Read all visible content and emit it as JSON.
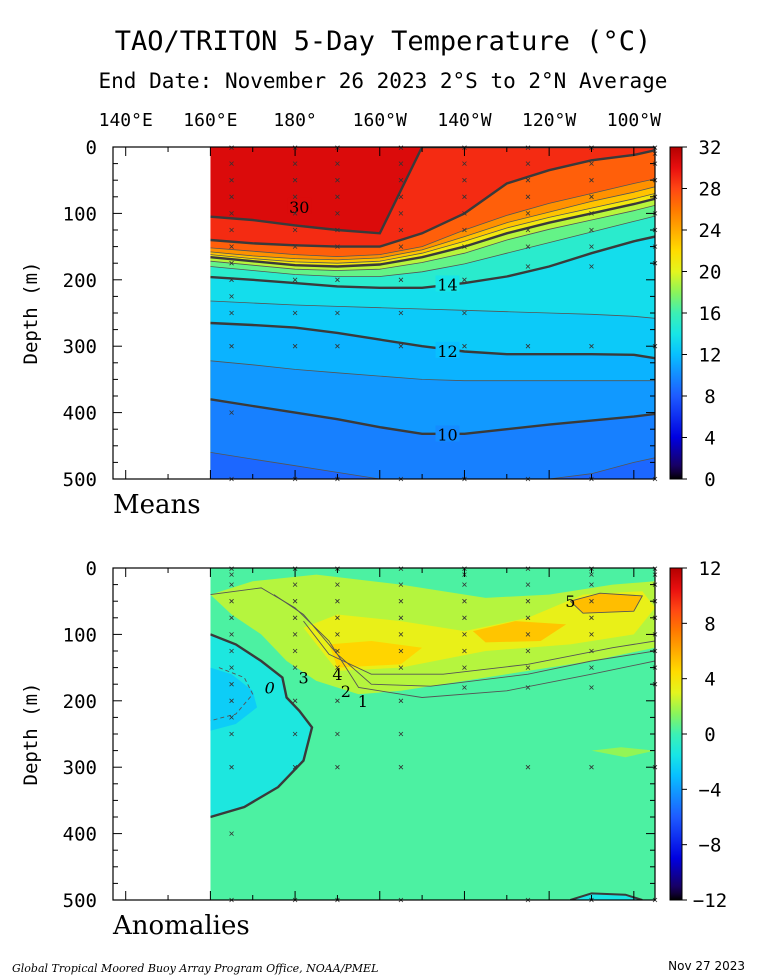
{
  "title": "TAO/TRITON 5-Day Temperature (°C)",
  "subtitle": "End Date: November 26 2023  2°S to 2°N Average",
  "footer_left": "Global Tropical Moored Buoy Array Program Office, NOAA/PMEL",
  "footer_right": "Nov 27 2023",
  "chart_data": [
    {
      "type": "heatmap",
      "panel_label": "Means",
      "x_ticks": [
        "140°E",
        "160°E",
        "180°",
        "160°W",
        "140°W",
        "120°W",
        "100°W"
      ],
      "x_tick_lon": [
        140,
        160,
        180,
        200,
        220,
        240,
        260
      ],
      "xlim": [
        137,
        265
      ],
      "data_xlim": [
        160,
        265
      ],
      "ylabel": "Depth (m)",
      "ylim": [
        0,
        500
      ],
      "y_ticks": [
        0,
        100,
        200,
        300,
        400,
        500
      ],
      "colorbar": {
        "min": 0,
        "max": 32,
        "ticks": [
          0,
          4,
          8,
          12,
          16,
          20,
          24,
          28,
          32
        ]
      },
      "isotherm_depths": {
        "lon": [
          160,
          170,
          180,
          190,
          200,
          210,
          220,
          230,
          240,
          250,
          260,
          265
        ],
        "levels": [
          {
            "value": 30,
            "depth": [
              105,
              110,
              118,
              125,
              130,
              0,
              0,
              0,
              0,
              0,
              0,
              0
            ]
          },
          {
            "value": 28,
            "depth": [
              140,
              145,
              148,
              150,
              150,
              130,
              100,
              55,
              35,
              20,
              12,
              5
            ]
          },
          {
            "value": 26,
            "depth": [
              152,
              157,
              162,
              165,
              162,
              150,
              125,
              103,
              85,
              70,
              55,
              48
            ]
          },
          {
            "value": 24,
            "depth": [
              158,
              164,
              168,
              170,
              167,
              155,
              135,
              114,
              98,
              82,
              68,
              60
            ]
          },
          {
            "value": 22,
            "depth": [
              162,
              168,
              173,
              175,
              172,
              160,
              142,
              122,
              106,
              92,
              78,
              70
            ]
          },
          {
            "value": 20,
            "depth": [
              166,
              172,
              178,
              180,
              177,
              166,
              150,
              130,
              114,
              100,
              86,
              78
            ]
          },
          {
            "value": 18,
            "depth": [
              172,
              178,
              184,
              186,
              184,
              174,
              160,
              140,
              124,
              110,
              96,
              88
            ]
          },
          {
            "value": 16,
            "depth": [
              180,
              186,
              192,
              195,
              195,
              188,
              176,
              160,
              144,
              128,
              112,
              104
            ]
          },
          {
            "value": 14,
            "depth": [
              196,
              200,
              205,
              210,
              212,
              212,
              205,
              195,
              180,
              160,
              142,
              135
            ]
          },
          {
            "value": 13,
            "depth": [
              232,
              235,
              238,
              240,
              242,
              244,
              246,
              248,
              250,
              252,
              255,
              258
            ]
          },
          {
            "value": 12,
            "depth": [
              265,
              268,
              272,
              280,
              290,
              300,
              308,
              312,
              312,
              312,
              313,
              318
            ]
          },
          {
            "value": 11,
            "depth": [
              322,
              328,
              335,
              340,
              345,
              350,
              352,
              352,
              352,
              352,
              352,
              352
            ]
          },
          {
            "value": 10,
            "depth": [
              380,
              390,
              400,
              410,
              422,
              432,
              432,
              425,
              418,
              412,
              406,
              402
            ]
          },
          {
            "value": 9,
            "depth": [
              460,
              470,
              480,
              490,
              500,
              500,
              500,
              500,
              500,
              492,
              475,
              468
            ]
          }
        ]
      },
      "labeled_contours": [
        {
          "text": "30",
          "lon": 181,
          "depth": 90
        },
        {
          "text": "14",
          "lon": 216,
          "depth": 207
        },
        {
          "text": "12",
          "lon": 216,
          "depth": 307
        },
        {
          "text": "10",
          "lon": 216,
          "depth": 433
        }
      ],
      "observation_marks": [
        {
          "lon": 165,
          "depths": [
            1,
            25,
            50,
            75,
            100,
            125,
            150,
            175,
            200,
            225,
            250,
            300,
            400,
            500
          ]
        },
        {
          "lon": 180,
          "depths": [
            1,
            25,
            50,
            75,
            100,
            125,
            150,
            200,
            250,
            300,
            500
          ]
        },
        {
          "lon": 190,
          "depths": [
            1,
            25,
            50,
            75,
            100,
            125,
            150,
            200,
            250,
            300,
            500
          ]
        },
        {
          "lon": 205,
          "depths": [
            1,
            25,
            50,
            75,
            100,
            125,
            150,
            200,
            250,
            300,
            500
          ]
        },
        {
          "lon": 220,
          "depths": [
            1,
            25,
            50,
            75,
            100,
            125,
            150,
            200,
            250,
            300,
            500
          ]
        },
        {
          "lon": 235,
          "depths": [
            1,
            25,
            50,
            75,
            100,
            125,
            150,
            180,
            300,
            500
          ]
        },
        {
          "lon": 250,
          "depths": [
            1,
            25,
            50,
            75,
            100,
            125,
            150,
            180,
            300,
            500
          ]
        },
        {
          "lon": 265,
          "depths": [
            1,
            10,
            25,
            50,
            75,
            100,
            125,
            150,
            175,
            300,
            500
          ]
        }
      ]
    },
    {
      "type": "heatmap",
      "panel_label": "Anomalies",
      "xlim": [
        137,
        265
      ],
      "data_xlim": [
        160,
        265
      ],
      "ylabel": "Depth (m)",
      "ylim": [
        0,
        500
      ],
      "y_ticks": [
        0,
        100,
        200,
        300,
        400,
        500
      ],
      "colorbar": {
        "min": -12,
        "max": 12,
        "ticks": [
          -12,
          -8,
          -4,
          0,
          4,
          8,
          12
        ]
      },
      "labeled_contours": [
        {
          "text": "5",
          "lon": 245,
          "depth": 50
        },
        {
          "text": "4",
          "lon": 190,
          "depth": 160
        },
        {
          "text": "3",
          "lon": 182,
          "depth": 165
        },
        {
          "text": "2",
          "lon": 192,
          "depth": 185
        },
        {
          "text": "1",
          "lon": 196,
          "depth": 200
        },
        {
          "text": "0",
          "lon": 174,
          "depth": 180
        }
      ],
      "observation_marks": [
        {
          "lon": 165,
          "depths": [
            1,
            10,
            25,
            50,
            75,
            100,
            125,
            150,
            175,
            200,
            225,
            250,
            300,
            400,
            500
          ]
        },
        {
          "lon": 180,
          "depths": [
            1,
            25,
            50,
            75,
            100,
            125,
            150,
            200,
            250,
            300,
            500
          ]
        },
        {
          "lon": 190,
          "depths": [
            1,
            25,
            50,
            75,
            100,
            125,
            150,
            200,
            250,
            300,
            500
          ]
        },
        {
          "lon": 205,
          "depths": [
            1,
            25,
            50,
            75,
            100,
            125,
            150,
            200,
            250,
            300,
            500
          ]
        },
        {
          "lon": 220,
          "depths": [
            1,
            10,
            25,
            50,
            75,
            100,
            125,
            150,
            180
          ]
        },
        {
          "lon": 235,
          "depths": [
            1,
            25,
            50,
            75,
            100,
            125,
            150,
            180,
            300,
            500
          ]
        },
        {
          "lon": 250,
          "depths": [
            1,
            10,
            25,
            50,
            75,
            100,
            125,
            150,
            180,
            300,
            500
          ]
        },
        {
          "lon": 265,
          "depths": [
            1,
            10,
            25,
            50,
            75,
            100,
            125,
            150,
            175,
            300,
            500
          ]
        }
      ]
    }
  ]
}
